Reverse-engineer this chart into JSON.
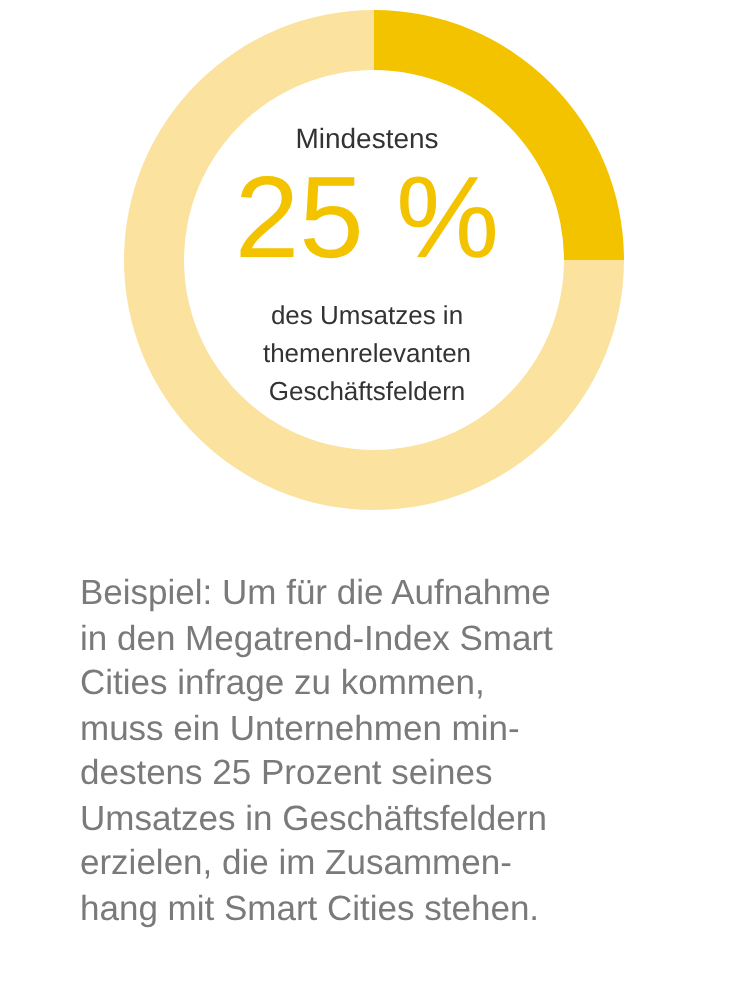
{
  "chart_data": {
    "type": "donut",
    "categories": [
      null,
      null
    ],
    "values": [
      25,
      75
    ],
    "colors": [
      "#f3c300",
      "#fbe29e"
    ],
    "value_labels": [
      "25 %",
      null
    ],
    "annotations": [
      "Mindestens",
      "des Umsatzes in\nthemenrelevanten\nGeschäftsfeldern",
      "Beispiel: Um für die Aufnahme\nin den Megatrend-Index Smart\nCities infrage zu kommen,\nmuss ein Unternehmen min-\ndestens 25 Prozent seines\nUmsatzes in Geschäftsfeldern\nerzielen, die im Zusammen-\nhang mit Smart Cities stehen."
    ]
  }
}
